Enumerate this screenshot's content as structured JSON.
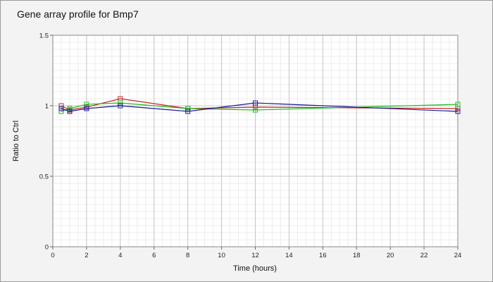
{
  "chart_data": {
    "type": "line",
    "title": "Gene array profile for Bmp7",
    "xlabel": "Time (hours)",
    "ylabel": "Ratio to Ctrl",
    "xlim": [
      0,
      24
    ],
    "ylim": [
      0,
      1.5
    ],
    "x_ticks": [
      "0",
      "2",
      "4",
      "6",
      "8",
      "10",
      "12",
      "14",
      "16",
      "18",
      "20",
      "22",
      "24"
    ],
    "y_ticks": [
      "0",
      "0.5",
      "1",
      "1.5"
    ],
    "grid": true,
    "legend": "none",
    "series": [
      {
        "color": "#cc2222",
        "x": [
          0.5,
          1,
          2,
          4,
          8,
          12,
          24
        ],
        "y": [
          1.0,
          0.97,
          0.99,
          1.05,
          0.98,
          0.99,
          0.98
        ]
      },
      {
        "color": "#22bb22",
        "x": [
          0.5,
          1,
          2,
          4,
          8,
          12,
          24
        ],
        "y": [
          0.96,
          0.98,
          1.01,
          1.02,
          0.98,
          0.97,
          1.01
        ]
      },
      {
        "color": "#1a1a99",
        "x": [
          0.5,
          1,
          2,
          4,
          8,
          12,
          24
        ],
        "y": [
          0.98,
          0.96,
          0.98,
          1.0,
          0.96,
          1.02,
          0.96
        ]
      }
    ]
  }
}
